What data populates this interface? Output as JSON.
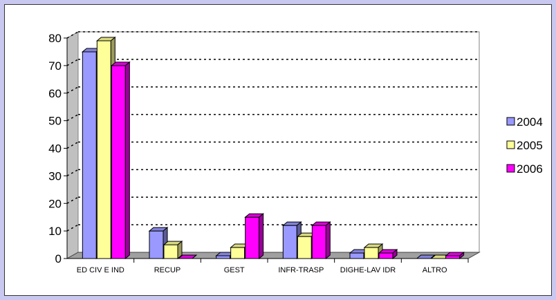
{
  "chart_data": {
    "type": "bar",
    "categories": [
      "ED CIV E IND",
      "RECUP",
      "GEST",
      "INFR-TRASP",
      "DIGHE-LAV IDR",
      "ALTRO"
    ],
    "series": [
      {
        "name": "2004",
        "color": "#9999ff",
        "values": [
          75,
          10,
          1,
          12,
          2,
          0
        ]
      },
      {
        "name": "2005",
        "color": "#ffff99",
        "values": [
          79,
          5,
          4,
          8,
          4,
          0
        ]
      },
      {
        "name": "2006",
        "color": "#ff00ff",
        "values": [
          70,
          0,
          15,
          12,
          2,
          1
        ]
      }
    ],
    "yticks": [
      0,
      10,
      20,
      30,
      40,
      50,
      60,
      70,
      80
    ],
    "ylim": [
      0,
      80
    ],
    "grid": true,
    "legend_position": "right",
    "title": "",
    "xlabel": "",
    "ylabel": ""
  }
}
